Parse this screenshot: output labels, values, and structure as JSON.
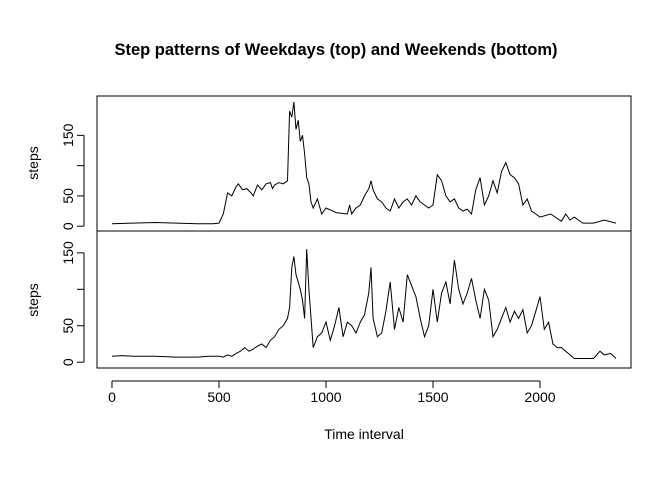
{
  "chart_data": [
    {
      "type": "line",
      "title": "Step patterns of Weekdays (top) and Weekends (bottom)",
      "panel": "top",
      "xlabel": "",
      "ylabel": "steps",
      "xlim": [
        -70,
        2425
      ],
      "ylim": [
        -8,
        215
      ],
      "yticks": [
        0,
        50,
        150
      ],
      "x": [
        0,
        100,
        200,
        300,
        400,
        470,
        500,
        520,
        540,
        560,
        580,
        590,
        610,
        630,
        650,
        660,
        680,
        700,
        720,
        740,
        750,
        760,
        780,
        800,
        820,
        830,
        840,
        850,
        860,
        870,
        880,
        890,
        900,
        910,
        920,
        930,
        940,
        960,
        980,
        1000,
        1050,
        1100,
        1110,
        1120,
        1140,
        1160,
        1180,
        1200,
        1210,
        1220,
        1240,
        1260,
        1280,
        1300,
        1320,
        1340,
        1360,
        1380,
        1400,
        1420,
        1440,
        1460,
        1480,
        1500,
        1520,
        1540,
        1560,
        1580,
        1600,
        1620,
        1640,
        1660,
        1680,
        1700,
        1720,
        1740,
        1760,
        1780,
        1800,
        1820,
        1840,
        1860,
        1880,
        1900,
        1920,
        1940,
        1960,
        1980,
        2000,
        2050,
        2100,
        2120,
        2140,
        2160,
        2200,
        2250,
        2300,
        2355
      ],
      "values": [
        4,
        5,
        6,
        5,
        4,
        4,
        5,
        20,
        55,
        50,
        65,
        70,
        60,
        62,
        55,
        50,
        68,
        60,
        70,
        72,
        62,
        68,
        72,
        70,
        75,
        190,
        180,
        205,
        160,
        175,
        140,
        150,
        120,
        80,
        70,
        40,
        30,
        45,
        20,
        30,
        22,
        20,
        35,
        20,
        30,
        35,
        50,
        62,
        75,
        60,
        45,
        40,
        30,
        25,
        45,
        30,
        40,
        45,
        35,
        50,
        40,
        35,
        30,
        35,
        85,
        75,
        50,
        40,
        45,
        30,
        25,
        28,
        20,
        60,
        80,
        35,
        50,
        75,
        55,
        90,
        105,
        85,
        80,
        70,
        35,
        45,
        25,
        20,
        15,
        20,
        8,
        20,
        10,
        15,
        5,
        5,
        10,
        5
      ]
    },
    {
      "type": "line",
      "panel": "bottom",
      "xlabel": "Time interval",
      "ylabel": "steps",
      "xlim": [
        -70,
        2425
      ],
      "ylim": [
        -8,
        180
      ],
      "yticks": [
        0,
        50,
        150
      ],
      "xticks": [
        0,
        500,
        1000,
        1500,
        2000
      ],
      "x": [
        0,
        50,
        100,
        200,
        300,
        350,
        400,
        450,
        500,
        520,
        540,
        560,
        580,
        600,
        620,
        640,
        660,
        680,
        700,
        720,
        740,
        760,
        780,
        800,
        820,
        830,
        840,
        850,
        860,
        880,
        890,
        900,
        910,
        920,
        940,
        960,
        980,
        1000,
        1020,
        1040,
        1060,
        1080,
        1100,
        1120,
        1140,
        1160,
        1180,
        1200,
        1210,
        1220,
        1240,
        1260,
        1280,
        1300,
        1320,
        1340,
        1360,
        1380,
        1400,
        1420,
        1440,
        1460,
        1480,
        1500,
        1520,
        1540,
        1560,
        1580,
        1600,
        1620,
        1640,
        1660,
        1680,
        1700,
        1720,
        1740,
        1760,
        1780,
        1800,
        1820,
        1840,
        1860,
        1880,
        1900,
        1920,
        1940,
        1960,
        1980,
        2000,
        2020,
        2040,
        2060,
        2080,
        2100,
        2120,
        2140,
        2160,
        2200,
        2250,
        2280,
        2300,
        2330,
        2355
      ],
      "values": [
        8,
        9,
        8,
        8,
        7,
        7,
        7,
        8,
        8,
        7,
        10,
        8,
        12,
        15,
        20,
        15,
        18,
        22,
        25,
        20,
        30,
        35,
        45,
        50,
        60,
        75,
        130,
        145,
        120,
        100,
        85,
        60,
        155,
        100,
        20,
        35,
        40,
        55,
        30,
        50,
        75,
        35,
        55,
        50,
        40,
        55,
        65,
        95,
        130,
        60,
        35,
        40,
        70,
        110,
        45,
        75,
        55,
        120,
        105,
        90,
        60,
        35,
        50,
        100,
        55,
        95,
        110,
        80,
        140,
        100,
        80,
        95,
        115,
        85,
        60,
        100,
        85,
        35,
        45,
        60,
        75,
        55,
        70,
        60,
        72,
        40,
        50,
        70,
        90,
        45,
        55,
        25,
        20,
        20,
        15,
        10,
        5,
        5,
        5,
        15,
        10,
        12,
        5
      ]
    }
  ]
}
